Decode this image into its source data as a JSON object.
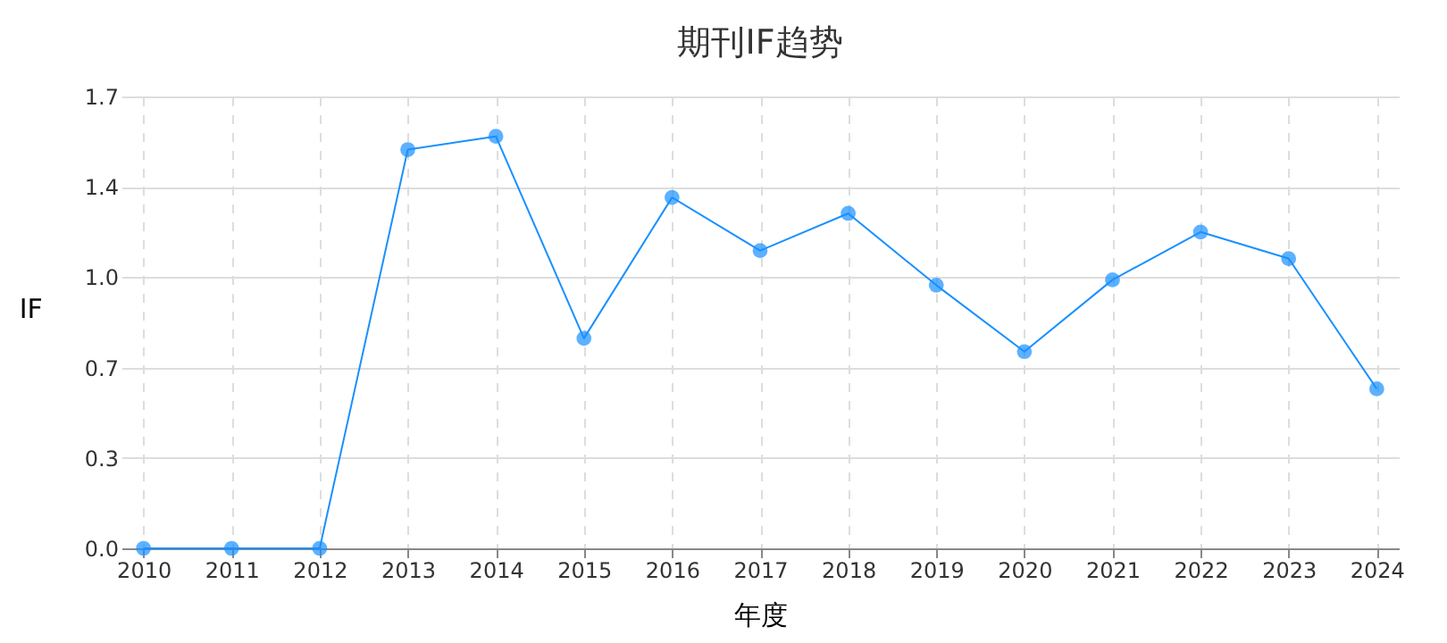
{
  "chart_data": {
    "type": "line",
    "title": "期刊IF趋势",
    "xlabel": "年度",
    "ylabel": "IF",
    "categories": [
      "2010",
      "2011",
      "2012",
      "2013",
      "2014",
      "2015",
      "2016",
      "2017",
      "2018",
      "2019",
      "2020",
      "2021",
      "2022",
      "2023",
      "2024"
    ],
    "series": [
      {
        "color": "#1890ff",
        "values": [
          0,
          0,
          0,
          1.5,
          1.55,
          0.79,
          1.32,
          1.12,
          1.26,
          0.99,
          0.74,
          1.01,
          1.19,
          1.09,
          0.6
        ]
      }
    ],
    "ylim": [
      0,
      1.7
    ],
    "yticks": [
      {
        "value": 0,
        "label": "0.0"
      },
      {
        "value": 0.34,
        "label": "0.3"
      },
      {
        "value": 0.68,
        "label": "0.7"
      },
      {
        "value": 1.02,
        "label": "1.0"
      },
      {
        "value": 1.36,
        "label": "1.4"
      },
      {
        "value": 1.7,
        "label": "1.7"
      }
    ],
    "grid": true,
    "marker": "circle",
    "line_style": "solid"
  }
}
